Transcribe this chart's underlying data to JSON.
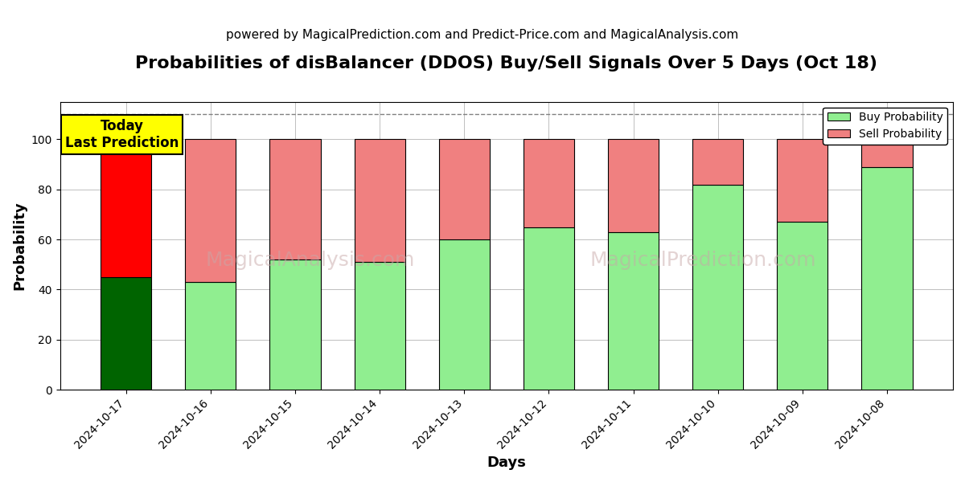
{
  "title": "Probabilities of disBalancer (DDOS) Buy/Sell Signals Over 5 Days (Oct 18)",
  "subtitle": "powered by MagicalPrediction.com and Predict-Price.com and MagicalAnalysis.com",
  "xlabel": "Days",
  "ylabel": "Probability",
  "dates": [
    "2024-10-17",
    "2024-10-16",
    "2024-10-15",
    "2024-10-14",
    "2024-10-13",
    "2024-10-12",
    "2024-10-11",
    "2024-10-10",
    "2024-10-09",
    "2024-10-08"
  ],
  "buy_values": [
    45,
    43,
    52,
    51,
    60,
    65,
    63,
    82,
    67,
    89
  ],
  "sell_values": [
    55,
    57,
    48,
    49,
    40,
    35,
    37,
    18,
    33,
    11
  ],
  "buy_colors": [
    "#006400",
    "#90EE90",
    "#90EE90",
    "#90EE90",
    "#90EE90",
    "#90EE90",
    "#90EE90",
    "#90EE90",
    "#90EE90",
    "#90EE90"
  ],
  "sell_colors": [
    "#FF0000",
    "#F08080",
    "#F08080",
    "#F08080",
    "#F08080",
    "#F08080",
    "#F08080",
    "#F08080",
    "#F08080",
    "#F08080"
  ],
  "legend_buy_color": "#90EE90",
  "legend_sell_color": "#F08080",
  "dashed_line_y": 110,
  "ylim": [
    0,
    115
  ],
  "annotation_text": "Today\nLast Prediction",
  "annotation_bg_color": "#FFFF00",
  "watermark_texts": [
    "MagicalAnalysis.com",
    "MagicalPrediction.com"
  ],
  "watermark_color": "#C8A8A8",
  "title_fontsize": 16,
  "subtitle_fontsize": 11,
  "axis_label_fontsize": 13,
  "tick_fontsize": 10,
  "bar_edgecolor": "#000000",
  "bar_linewidth": 0.8,
  "figsize": [
    12,
    6
  ],
  "dpi": 100
}
